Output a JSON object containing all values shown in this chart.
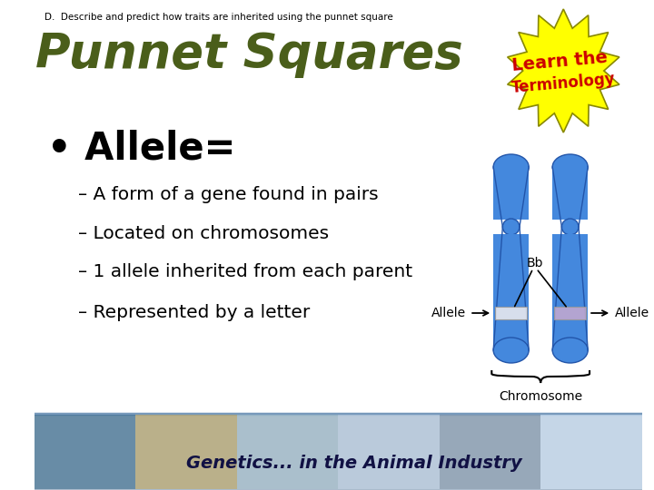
{
  "subtitle": "D.  Describe and predict how traits are inherited using the punnet square",
  "title": "Punnet Squares",
  "title_color": "#4a5e1a",
  "bullet_header": "• Allele=",
  "bullet_points": [
    "– A form of a gene found in pairs",
    "– Located on chromosomes",
    "– 1 allele inherited from each parent",
    "– Represented by a letter"
  ],
  "starburst_text_line1": "Learn the",
  "starburst_text_line2": "Terminology",
  "starburst_fill": "#ffff00",
  "starburst_edge": "#888800",
  "starburst_text_color": "#cc0000",
  "label_bb": "Bb",
  "label_allele_left": "Allele",
  "label_allele_right": "Allele",
  "label_chromosome": "Chromosome",
  "chrom_color": "#4488dd",
  "chrom_highlight": "#6aacee",
  "chrom_band1_color": "#e8e8ee",
  "chrom_band2_color": "#c0a8d0",
  "background_color": "#ffffff",
  "footer_bg": "#ccddee",
  "footer_text": "Genetics... in the Animal Industry",
  "footer_text_color": "#111144"
}
